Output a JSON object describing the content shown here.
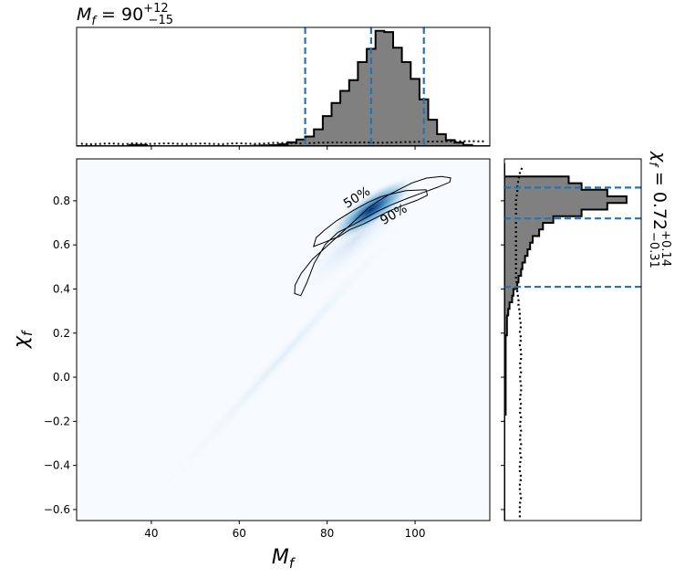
{
  "chart_data": [
    {
      "type": "heatmap",
      "panel": "joint",
      "xlabel": "M",
      "xlabel_sub": "f",
      "ylabel": "χ",
      "ylabel_sub": "f",
      "xlim": [
        23,
        117
      ],
      "ylim": [
        -0.65,
        0.99
      ],
      "xticks": [
        "40",
        "60",
        "80",
        "100"
      ],
      "yticks": [
        "-0.6",
        "-0.4",
        "-0.2",
        "0.0",
        "0.2",
        "0.4",
        "0.6",
        "0.8"
      ],
      "colormap": "Blues",
      "density_peak": {
        "x": 90,
        "y": 0.76
      },
      "contours": [
        {
          "label": "50%",
          "points": [
            [
              76.9,
              0.593
            ],
            [
              77.5,
              0.633
            ],
            [
              79.4,
              0.667
            ],
            [
              82.1,
              0.709
            ],
            [
              86.0,
              0.757
            ],
            [
              89.3,
              0.793
            ],
            [
              92.2,
              0.818
            ],
            [
              94.6,
              0.831
            ],
            [
              97.9,
              0.846
            ],
            [
              102.5,
              0.85
            ],
            [
              102.8,
              0.825
            ],
            [
              100.4,
              0.802
            ],
            [
              97.1,
              0.778
            ],
            [
              93.8,
              0.751
            ],
            [
              90.9,
              0.721
            ],
            [
              88.3,
              0.695
            ],
            [
              85.0,
              0.668
            ],
            [
              82.7,
              0.638
            ],
            [
              79.4,
              0.612
            ]
          ]
        },
        {
          "label": "90%",
          "points": [
            [
              72.6,
              0.379
            ],
            [
              72.7,
              0.418
            ],
            [
              74.1,
              0.471
            ],
            [
              76.7,
              0.536
            ],
            [
              80.0,
              0.595
            ],
            [
              83.4,
              0.657
            ],
            [
              86.4,
              0.712
            ],
            [
              89.3,
              0.766
            ],
            [
              91.7,
              0.8
            ],
            [
              94.1,
              0.828
            ],
            [
              96.7,
              0.855
            ],
            [
              99.3,
              0.881
            ],
            [
              102.6,
              0.903
            ],
            [
              106.0,
              0.91
            ],
            [
              108.1,
              0.904
            ],
            [
              107.9,
              0.885
            ],
            [
              105.2,
              0.862
            ],
            [
              101.6,
              0.836
            ],
            [
              98.1,
              0.81
            ],
            [
              94.4,
              0.78
            ],
            [
              91.4,
              0.752
            ],
            [
              88.7,
              0.722
            ],
            [
              85.8,
              0.69
            ],
            [
              82.4,
              0.656
            ],
            [
              79.6,
              0.603
            ],
            [
              77.1,
              0.518
            ],
            [
              75.4,
              0.43
            ],
            [
              74.0,
              0.37
            ]
          ]
        }
      ]
    },
    {
      "type": "area",
      "panel": "top-marginal",
      "title_lhs": "M",
      "title_sub": "f",
      "title_value": "90",
      "title_plus": "+12",
      "title_minus": "−15",
      "xlim": [
        23,
        117
      ],
      "bin_edges": [
        23,
        25,
        27,
        29,
        31,
        33,
        35,
        37,
        39,
        41,
        43,
        45,
        47,
        49,
        51,
        53,
        55,
        57,
        59,
        61,
        63,
        65,
        67,
        69,
        71,
        73,
        75,
        77,
        79,
        81,
        83,
        85,
        87,
        89,
        91,
        93,
        95,
        97,
        99,
        101,
        103,
        105,
        107,
        109,
        111,
        113,
        115,
        117
      ],
      "posterior_counts": [
        0,
        0,
        0,
        0,
        0,
        0,
        1,
        1,
        0,
        0,
        0,
        0,
        0,
        0,
        0,
        0,
        0,
        0,
        0,
        0,
        0.3,
        0.5,
        0.8,
        1.6,
        3.3,
        5.5,
        8,
        14,
        25,
        36,
        46,
        55,
        70,
        81,
        96,
        95,
        82,
        70,
        56,
        39,
        22,
        10,
        5,
        3,
        1,
        0,
        0
      ],
      "prior_line": [
        2,
        1.5,
        1.8,
        2.2,
        2,
        1.6,
        2.4,
        2,
        1.8,
        2.1,
        2.3,
        1.9,
        1.7,
        2,
        2.2,
        1.8,
        1.6,
        2.1,
        2.4,
        2,
        1.9,
        2.2,
        2.8,
        2.6,
        2.4,
        2.2,
        2.5,
        2.8,
        3,
        3.1,
        3,
        2.9,
        3.2,
        2.9,
        2.8,
        3,
        3.2,
        3.4,
        3.5,
        3.7,
        3.8,
        3.9,
        4,
        4.1,
        4.1,
        4,
        4
      ],
      "vlines": [
        75,
        90,
        102
      ]
    },
    {
      "type": "area",
      "panel": "right-marginal",
      "title_lhs": "χ",
      "title_sub": "f",
      "title_value": "0.72",
      "title_plus": "+0.14",
      "title_minus": "−0.31",
      "ylim": [
        -0.65,
        0.99
      ],
      "bin_edges": [
        -0.65,
        -0.62,
        -0.59,
        -0.56,
        -0.53,
        -0.5,
        -0.47,
        -0.44,
        -0.41,
        -0.38,
        -0.35,
        -0.32,
        -0.29,
        -0.26,
        -0.23,
        -0.2,
        -0.17,
        -0.14,
        -0.11,
        -0.08,
        -0.05,
        -0.02,
        0.01,
        0.04,
        0.07,
        0.1,
        0.13,
        0.16,
        0.19,
        0.22,
        0.25,
        0.28,
        0.31,
        0.34,
        0.37,
        0.4,
        0.43,
        0.46,
        0.49,
        0.52,
        0.55,
        0.58,
        0.61,
        0.64,
        0.67,
        0.7,
        0.73,
        0.76,
        0.79,
        0.82,
        0.85,
        0.88,
        0.91,
        0.94,
        0.97
      ],
      "posterior_counts": [
        0,
        0,
        0,
        0,
        0,
        0,
        0,
        0,
        0,
        0,
        0,
        0,
        0,
        0,
        0,
        0,
        1,
        1,
        1,
        1,
        1,
        1,
        1,
        1,
        1,
        1,
        1,
        1,
        2,
        2,
        2,
        3,
        4,
        6,
        7,
        10,
        11,
        13,
        14,
        16,
        18,
        20,
        22,
        27,
        30,
        38,
        60,
        80,
        95,
        80,
        60,
        50,
        0,
        0
      ],
      "prior_line": [
        12,
        12,
        12,
        13,
        12,
        12,
        13,
        12,
        12,
        13,
        12,
        13,
        12,
        13,
        12,
        13,
        12,
        13,
        12,
        13,
        13,
        12,
        13,
        12,
        13,
        13,
        12,
        13,
        12,
        13,
        12,
        12,
        11,
        11,
        10,
        10,
        9,
        9,
        9,
        9,
        9,
        9,
        9,
        9,
        9,
        9,
        9,
        9,
        9,
        10,
        10,
        11,
        12,
        14
      ],
      "hlines": [
        0.41,
        0.72,
        0.86
      ]
    }
  ]
}
